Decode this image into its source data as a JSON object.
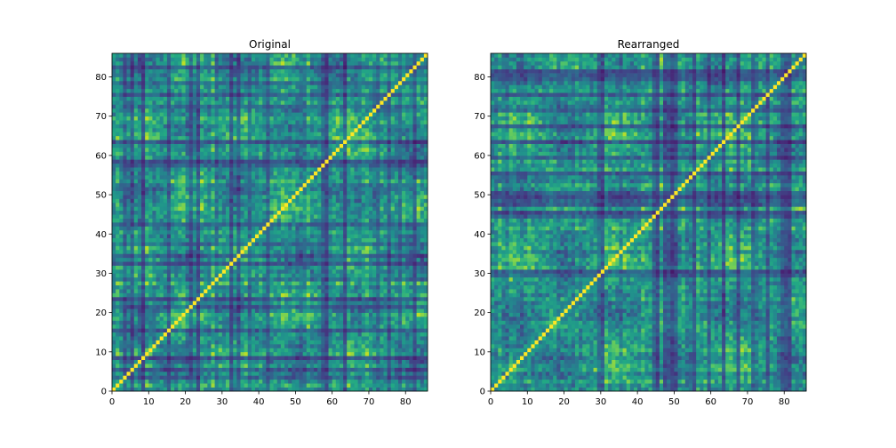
{
  "chart_data": [
    {
      "type": "heatmap",
      "title": "Original",
      "xlabel": "",
      "ylabel": "",
      "size": 86,
      "xlim": [
        0,
        86
      ],
      "ylim": [
        0,
        86
      ],
      "xticks": [
        0,
        10,
        20,
        30,
        40,
        50,
        60,
        70,
        80
      ],
      "yticks": [
        0,
        10,
        20,
        30,
        40,
        50,
        60,
        70,
        80
      ],
      "strong_rows": [
        3,
        5,
        8,
        15,
        21,
        23,
        32,
        34,
        37,
        42,
        57,
        58,
        63,
        72,
        75,
        78,
        82
      ],
      "seed": 7,
      "colormap": "viridis",
      "diagonal_value": 1.0
    },
    {
      "type": "heatmap",
      "title": "Rearranged",
      "xlabel": "",
      "ylabel": "",
      "size": 86,
      "xlim": [
        0,
        86
      ],
      "ylim": [
        0,
        86
      ],
      "xticks": [
        0,
        10,
        20,
        30,
        40,
        50,
        60,
        70,
        80
      ],
      "yticks": [
        0,
        10,
        20,
        30,
        40,
        50,
        60,
        70,
        80
      ],
      "strong_rows": [
        29,
        30,
        44,
        45,
        47,
        48,
        49,
        50,
        55,
        59,
        63,
        67,
        71,
        75,
        79,
        80,
        81
      ],
      "seed": 19,
      "colormap": "viridis",
      "diagonal_value": 1.0
    }
  ]
}
